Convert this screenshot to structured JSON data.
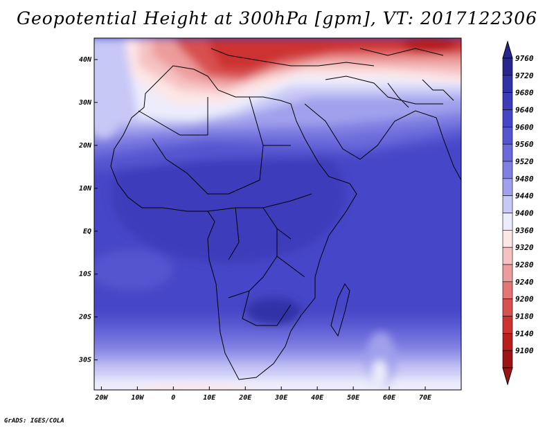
{
  "title": "Geopotential Height at 300hPa [gpm], VT: 2017122306",
  "credit": "GrADS: IGES/COLA",
  "map": {
    "lon_range": [
      -22,
      80
    ],
    "lat_range": [
      -37,
      45
    ],
    "x_ticks": [
      "20W",
      "10W",
      "0",
      "10E",
      "20E",
      "30E",
      "40E",
      "50E",
      "60E",
      "70E"
    ],
    "x_tick_values": [
      -20,
      -10,
      0,
      10,
      20,
      30,
      40,
      50,
      60,
      70
    ],
    "y_ticks": [
      "40N",
      "30N",
      "20N",
      "10N",
      "EQ",
      "10S",
      "20S",
      "30S"
    ],
    "y_tick_values": [
      40,
      30,
      20,
      10,
      0,
      -10,
      -20,
      -30
    ]
  },
  "colorbar": {
    "levels": [
      "9760",
      "9720",
      "9680",
      "9640",
      "9600",
      "9560",
      "9520",
      "9480",
      "9440",
      "9400",
      "9360",
      "9320",
      "9280",
      "9240",
      "9200",
      "9180",
      "9140",
      "9100"
    ],
    "colors": [
      "#26268c",
      "#3232a8",
      "#3c3cbb",
      "#4646c8",
      "#5555cf",
      "#6a6adb",
      "#8080e2",
      "#a0a0ec",
      "#c8c8f6",
      "#ececfc",
      "#fde6e6",
      "#f5c2c2",
      "#ec9c9c",
      "#e27676",
      "#d85050",
      "#cc3232",
      "#b81e1e",
      "#9e1414"
    ]
  }
}
